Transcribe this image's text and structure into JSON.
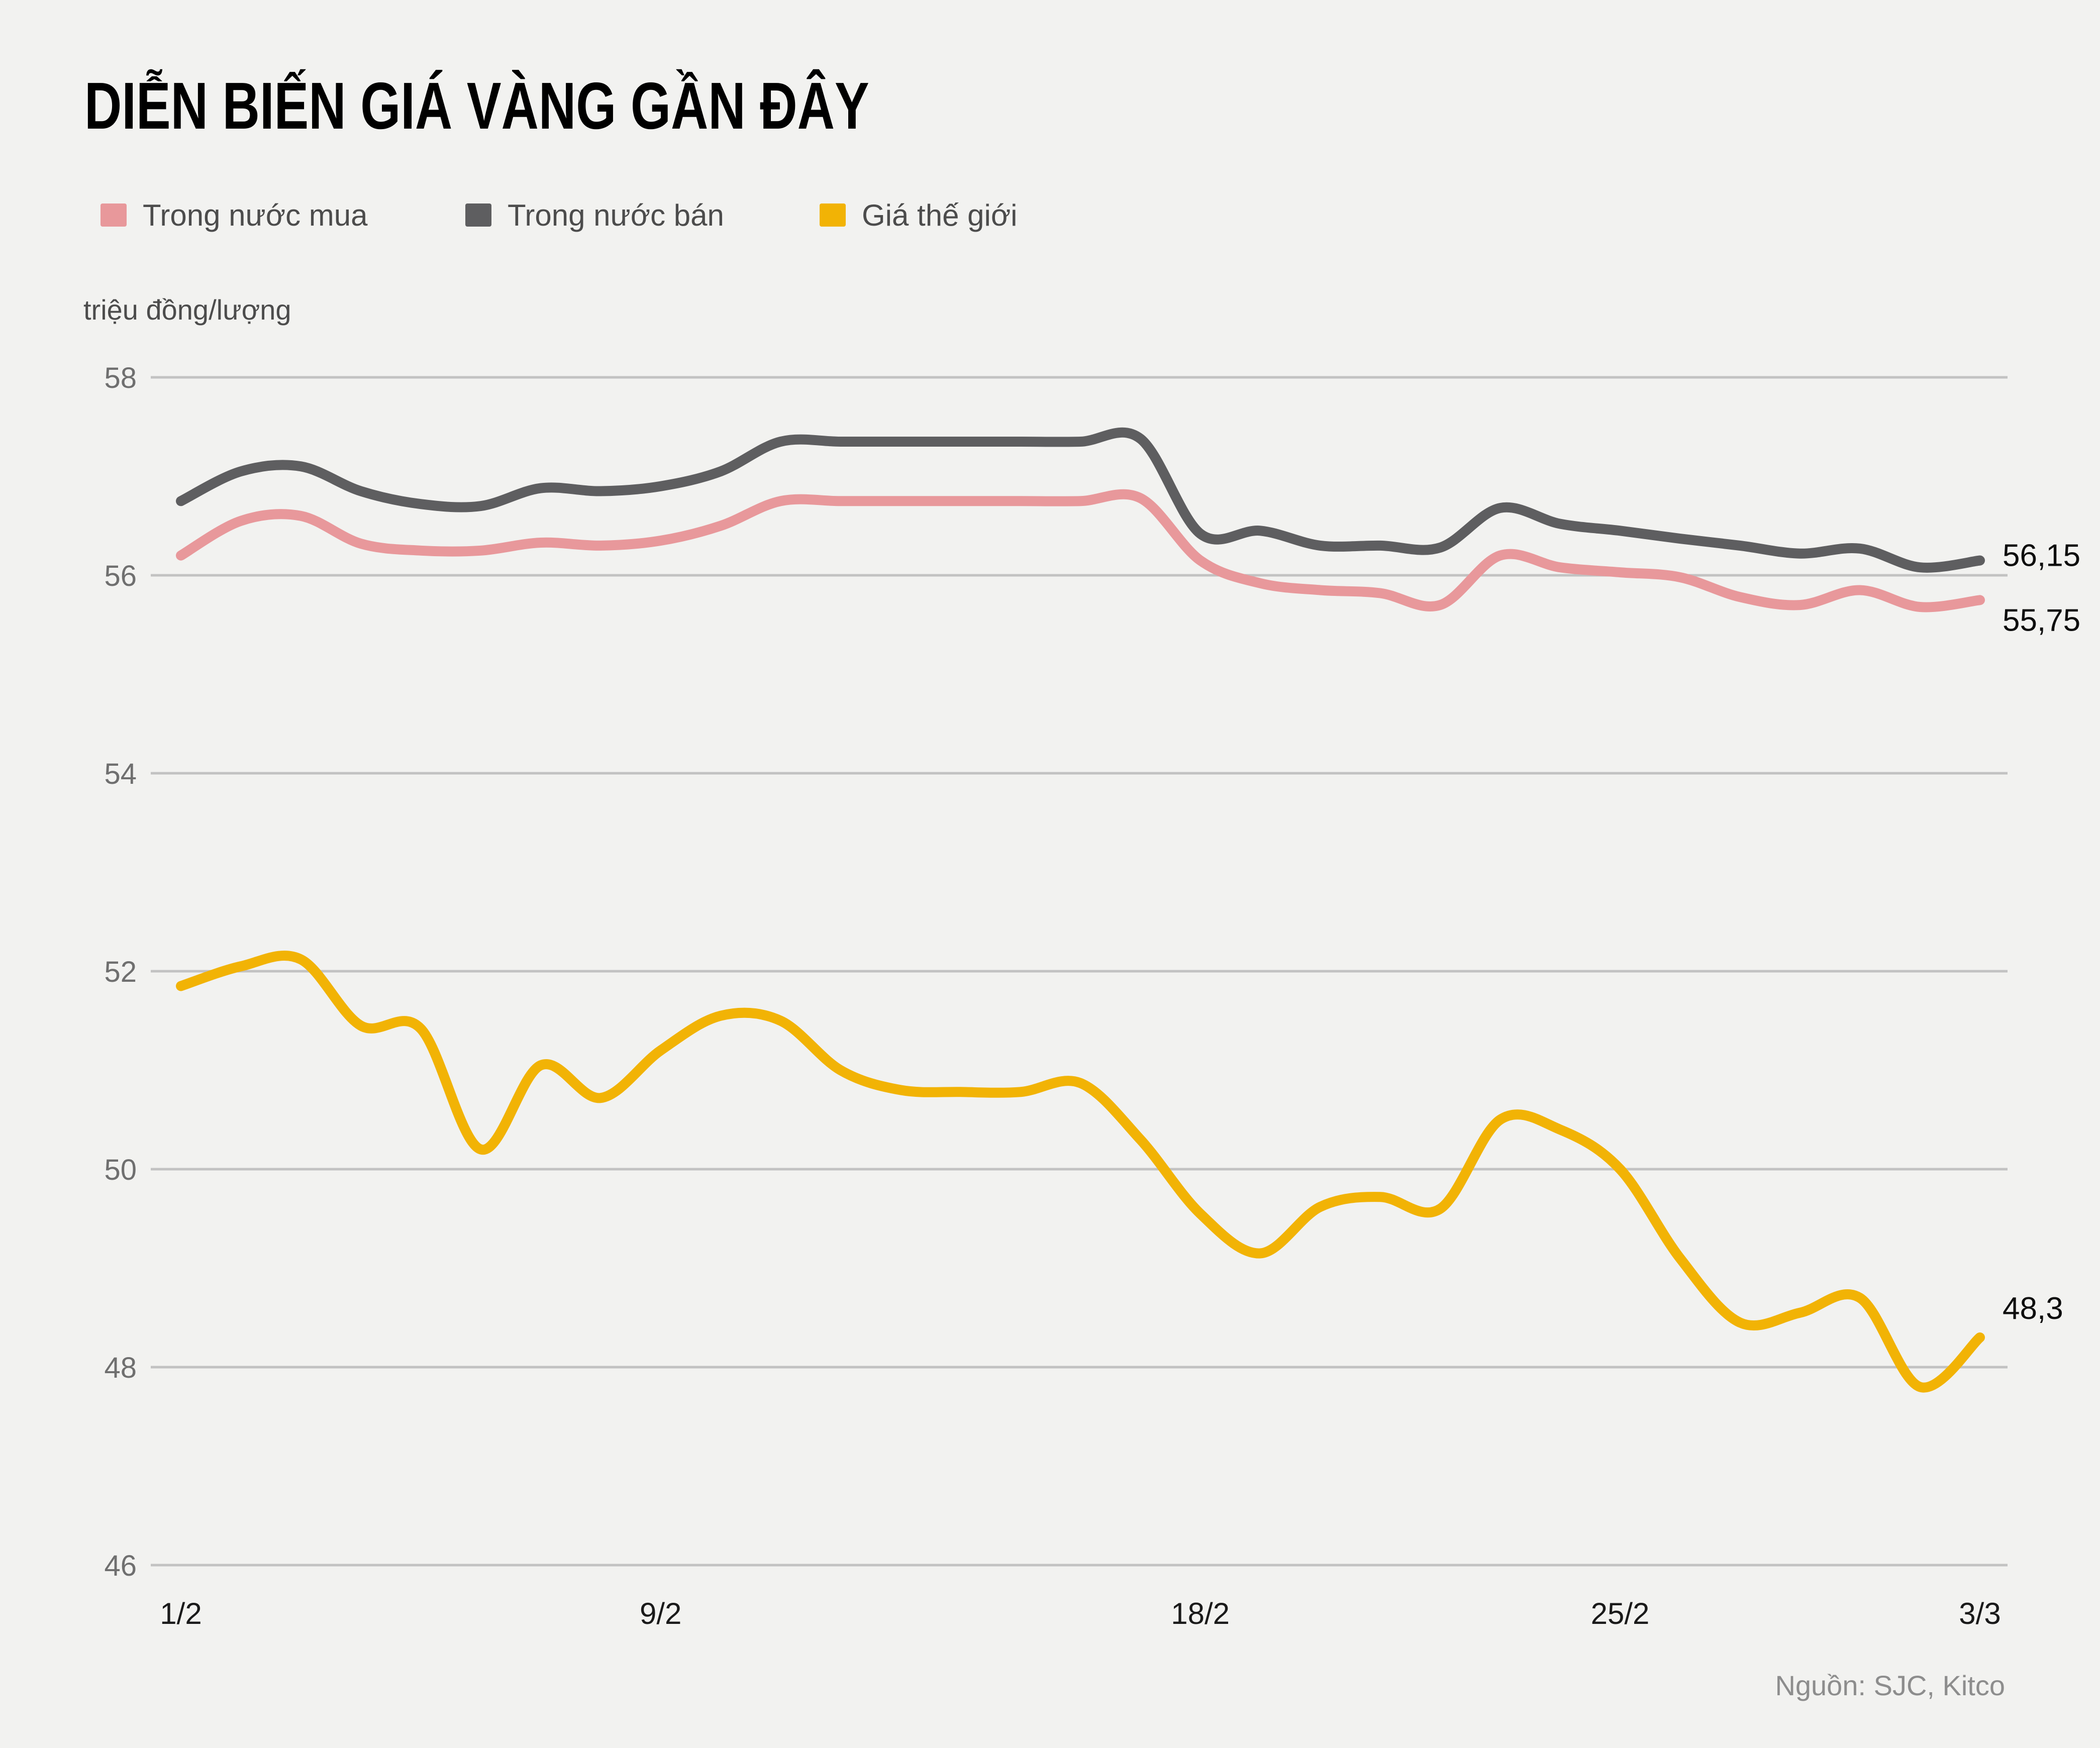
{
  "title": "DIỄN BIẾN GIÁ VÀNG GẦN ĐÂY",
  "unit_label": "triệu đồng/lượng",
  "source": "Nguồn: SJC, Kitco",
  "legend": {
    "items": [
      {
        "label": "Trong nước mua"
      },
      {
        "label": "Trong nước bán"
      },
      {
        "label": "Giá thế giới"
      }
    ]
  },
  "colors": {
    "background": "#f2f2f0",
    "grid": "#c2c2c2",
    "y_tick_text": "#6f6f6f",
    "x_tick_text": "#1a1a1a",
    "end_label_text": "#0d0d0d",
    "legend_text": "#4c4c4c",
    "title_text": "#000000",
    "source_text": "#8d8d8d"
  },
  "chart_data": {
    "type": "line",
    "title": "DIỄN BIẾN GIÁ VÀNG GẦN ĐÂY",
    "ylabel": "triệu đồng/lượng",
    "xlabel": "",
    "grid": "horizontal",
    "legend_position": "top-left",
    "ylim": [
      45.6,
      58.4
    ],
    "yticks": [
      58,
      56,
      54,
      52,
      50,
      48,
      46
    ],
    "xticks": [
      {
        "label": "1/2",
        "index": 0
      },
      {
        "label": "9/2",
        "index": 8
      },
      {
        "label": "18/2",
        "index": 17
      },
      {
        "label": "25/2",
        "index": 24
      },
      {
        "label": "3/3",
        "index": 30
      }
    ],
    "dates": [
      "1/2",
      "2/2",
      "3/2",
      "4/2",
      "5/2",
      "6/2",
      "7/2",
      "8/2",
      "9/2",
      "10/2",
      "11/2",
      "12/2",
      "13/2",
      "14/2",
      "15/2",
      "16/2",
      "17/2",
      "18/2",
      "19/2",
      "20/2",
      "21/2",
      "22/2",
      "23/2",
      "24/2",
      "25/2",
      "26/2",
      "27/2",
      "28/2",
      "1/3",
      "2/3",
      "3/3"
    ],
    "series": [
      {
        "id": "trong-nuoc-mua",
        "name": "Trong nước mua",
        "color": "#e8989b",
        "end_label": "55,75",
        "end_value": 55.75,
        "values": [
          56.2,
          56.55,
          56.6,
          56.32,
          56.25,
          56.25,
          56.33,
          56.3,
          56.35,
          56.5,
          56.75,
          56.75,
          56.75,
          56.75,
          56.75,
          56.75,
          56.78,
          56.15,
          55.92,
          55.85,
          55.82,
          55.7,
          56.2,
          56.08,
          56.03,
          55.98,
          55.78,
          55.7,
          55.85,
          55.68,
          55.75
        ]
      },
      {
        "id": "trong-nuoc-ban",
        "name": "Trong nước bán",
        "color": "#5e5e60",
        "end_label": "56,15",
        "end_value": 56.15,
        "values": [
          56.75,
          57.05,
          57.1,
          56.85,
          56.72,
          56.7,
          56.88,
          56.85,
          56.9,
          57.05,
          57.35,
          57.35,
          57.35,
          57.35,
          57.35,
          57.35,
          57.38,
          56.42,
          56.45,
          56.3,
          56.3,
          56.28,
          56.68,
          56.52,
          56.45,
          56.37,
          56.3,
          56.22,
          56.27,
          56.08,
          56.15
        ]
      },
      {
        "id": "gia-the-gioi",
        "name": "Giá thế giới",
        "color": "#f2b305",
        "end_label": "48,3",
        "end_value": 48.3,
        "values": [
          51.85,
          52.05,
          52.12,
          51.45,
          51.42,
          50.2,
          51.05,
          50.72,
          51.2,
          51.55,
          51.5,
          51.0,
          50.8,
          50.78,
          50.78,
          50.87,
          50.3,
          49.55,
          49.15,
          49.62,
          49.72,
          49.6,
          50.5,
          50.4,
          50.0,
          49.1,
          48.45,
          48.55,
          48.7,
          47.8,
          48.3
        ]
      }
    ]
  }
}
